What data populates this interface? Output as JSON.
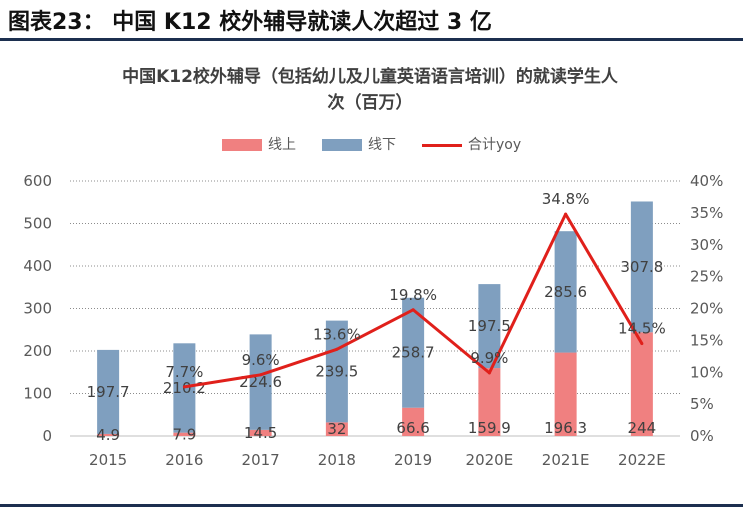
{
  "figure": {
    "label": "图表23：  中国 K12 校外辅导就读人次超过 3 亿"
  },
  "chart_data": {
    "type": "bar",
    "stacked": true,
    "title_line1": "中国K12校外辅导（包括幼儿及儿童英语语言培训）的就读学生人",
    "title_line2": "次（百万）",
    "categories": [
      "2015",
      "2016",
      "2017",
      "2018",
      "2019",
      "2020E",
      "2021E",
      "2022E"
    ],
    "series": [
      {
        "name": "线上",
        "type": "bar",
        "color": "#f08080",
        "values": [
          4.9,
          7.9,
          14.5,
          32,
          66.6,
          159.9,
          196.3,
          244
        ],
        "labels": [
          "4.9",
          "7.9",
          "14.5",
          "32",
          "66.6",
          "159.9",
          "196.3",
          "244"
        ]
      },
      {
        "name": "线下",
        "type": "bar",
        "color": "#7f9fbf",
        "values": [
          197.7,
          210.2,
          224.6,
          239.5,
          258.7,
          197.5,
          285.6,
          307.8
        ],
        "labels": [
          "197.7",
          "210.2",
          "224.6",
          "239.5",
          "258.7",
          "197.5",
          "285.6",
          "307.8"
        ]
      },
      {
        "name": "合计yoy",
        "type": "line",
        "color": "#e0201b",
        "axis": "right",
        "values": [
          null,
          7.7,
          9.6,
          13.6,
          19.8,
          9.9,
          34.8,
          14.5
        ],
        "labels": [
          "",
          "7.7%",
          "9.6%",
          "13.6%",
          "19.8%",
          "9.9%",
          "34.8%",
          "14.5%"
        ]
      }
    ],
    "y_left": {
      "min": 0,
      "max": 600,
      "ticks": [
        "0",
        "100",
        "200",
        "300",
        "400",
        "500",
        "600"
      ]
    },
    "y_right": {
      "min": 0,
      "max": 40,
      "unit": "%",
      "ticks": [
        "0%",
        "5%",
        "10%",
        "15%",
        "20%",
        "25%",
        "30%",
        "35%",
        "40%"
      ]
    },
    "grid": "dotted horizontal",
    "legend_position": "top"
  }
}
